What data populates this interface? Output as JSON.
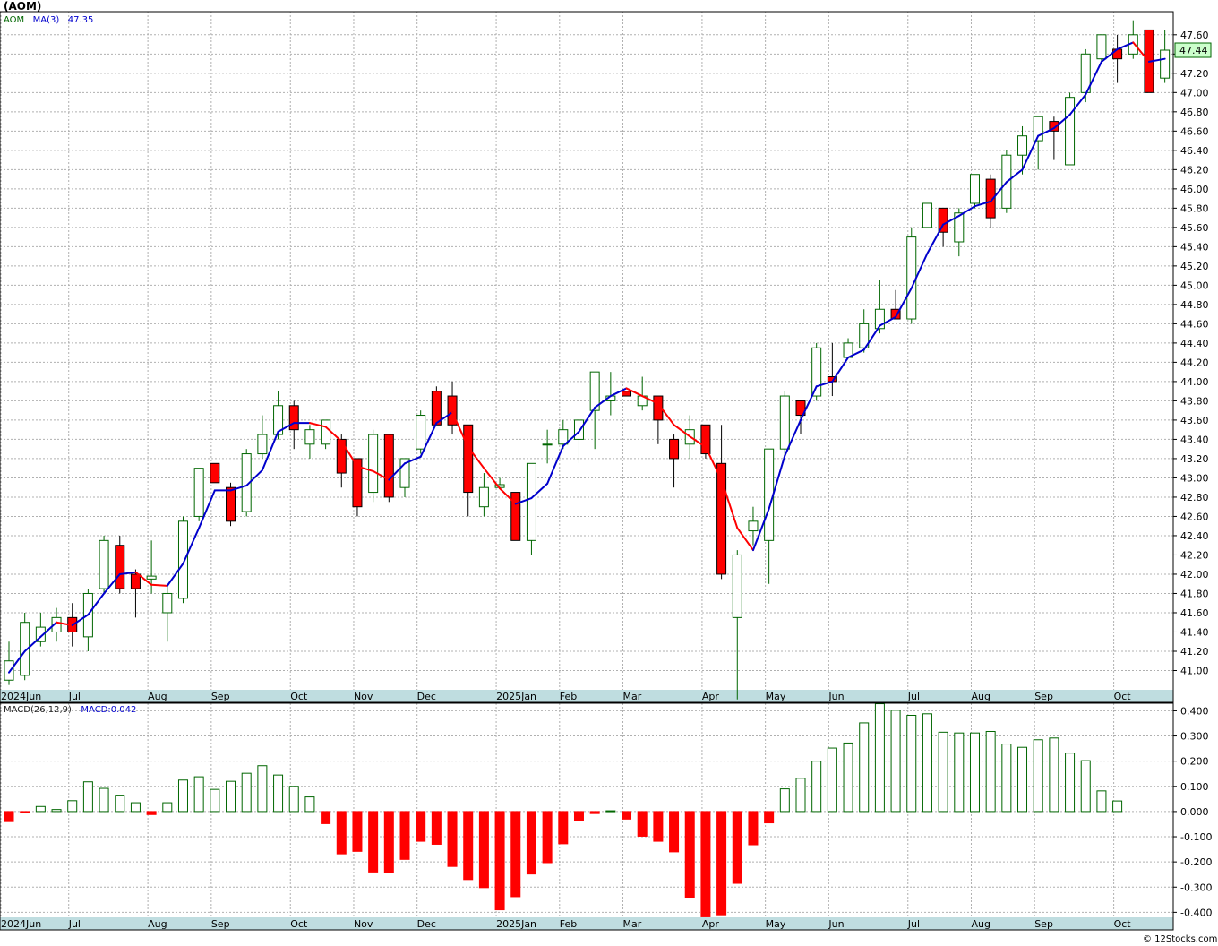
{
  "header": {
    "symbol": "(AOM)",
    "copyright": "© 12Stocks.com"
  },
  "legend": {
    "ticker": "AOM",
    "ma_label": "MA(3)",
    "ma_value": "47.35",
    "macd_label": "MACD(26,12,9)",
    "macd_value": "MACD:0.042"
  },
  "last_price": "47.44",
  "colors": {
    "up": "#006600",
    "down": "#ff0000",
    "ma_up": "#0000cc",
    "ma_down": "#ff0000",
    "grid": "#b0b0b0",
    "axis_band": "#bfdde0"
  },
  "chart_data": [
    {
      "type": "candlestick",
      "ylim": [
        40.8,
        47.84
      ],
      "yticks": [
        "41.00",
        "41.20",
        "41.40",
        "41.60",
        "41.80",
        "42.00",
        "42.20",
        "42.40",
        "42.60",
        "42.80",
        "43.00",
        "43.20",
        "43.40",
        "43.60",
        "43.80",
        "44.00",
        "44.20",
        "44.40",
        "44.60",
        "44.80",
        "45.00",
        "45.20",
        "45.40",
        "45.60",
        "45.80",
        "46.00",
        "46.20",
        "46.40",
        "46.60",
        "46.80",
        "47.00",
        "47.20",
        "47.40",
        "47.60"
      ],
      "month_labels": [
        {
          "label": "2024Jun",
          "week": -0.3
        },
        {
          "label": "Jul",
          "week": 4
        },
        {
          "label": "Aug",
          "week": 9
        },
        {
          "label": "Sep",
          "week": 13
        },
        {
          "label": "Oct",
          "week": 18
        },
        {
          "label": "Nov",
          "week": 22
        },
        {
          "label": "Dec",
          "week": 26
        },
        {
          "label": "2025Jan",
          "week": 31
        },
        {
          "label": "Feb",
          "week": 35
        },
        {
          "label": "Mar",
          "week": 39
        },
        {
          "label": "Apr",
          "week": 44
        },
        {
          "label": "May",
          "week": 48
        },
        {
          "label": "Jun",
          "week": 52
        },
        {
          "label": "Jul",
          "week": 57
        },
        {
          "label": "Aug",
          "week": 61
        },
        {
          "label": "Sep",
          "week": 65
        },
        {
          "label": "Oct",
          "week": 70
        }
      ],
      "candles": [
        {
          "o": 40.9,
          "h": 41.3,
          "l": 40.85,
          "c": 41.1
        },
        {
          "o": 40.95,
          "h": 41.6,
          "l": 40.9,
          "c": 41.5
        },
        {
          "o": 41.3,
          "h": 41.6,
          "l": 41.25,
          "c": 41.45
        },
        {
          "o": 41.4,
          "h": 41.65,
          "l": 41.3,
          "c": 41.55
        },
        {
          "o": 41.55,
          "h": 41.7,
          "l": 41.25,
          "c": 41.4
        },
        {
          "o": 41.35,
          "h": 41.85,
          "l": 41.2,
          "c": 41.8
        },
        {
          "o": 41.85,
          "h": 42.4,
          "l": 41.8,
          "c": 42.35
        },
        {
          "o": 42.3,
          "h": 42.4,
          "l": 41.8,
          "c": 41.85
        },
        {
          "o": 42.0,
          "h": 42.05,
          "l": 41.55,
          "c": 41.85
        },
        {
          "o": 41.95,
          "h": 42.35,
          "l": 41.8,
          "c": 41.98
        },
        {
          "o": 41.6,
          "h": 41.9,
          "l": 41.3,
          "c": 41.8
        },
        {
          "o": 41.75,
          "h": 42.6,
          "l": 41.7,
          "c": 42.55
        },
        {
          "o": 42.6,
          "h": 43.1,
          "l": 42.55,
          "c": 43.1
        },
        {
          "o": 43.15,
          "h": 43.15,
          "l": 42.95,
          "c": 42.95
        },
        {
          "o": 42.9,
          "h": 42.95,
          "l": 42.5,
          "c": 42.55
        },
        {
          "o": 42.65,
          "h": 43.3,
          "l": 42.6,
          "c": 43.25
        },
        {
          "o": 43.25,
          "h": 43.65,
          "l": 43.2,
          "c": 43.45
        },
        {
          "o": 43.45,
          "h": 43.9,
          "l": 43.4,
          "c": 43.75
        },
        {
          "o": 43.75,
          "h": 43.8,
          "l": 43.3,
          "c": 43.5
        },
        {
          "o": 43.35,
          "h": 43.55,
          "l": 43.2,
          "c": 43.5
        },
        {
          "o": 43.35,
          "h": 43.6,
          "l": 43.3,
          "c": 43.6
        },
        {
          "o": 43.4,
          "h": 43.45,
          "l": 42.9,
          "c": 43.05
        },
        {
          "o": 43.2,
          "h": 43.2,
          "l": 42.6,
          "c": 42.7
        },
        {
          "o": 42.85,
          "h": 43.5,
          "l": 42.75,
          "c": 43.45
        },
        {
          "o": 43.45,
          "h": 43.45,
          "l": 42.75,
          "c": 42.8
        },
        {
          "o": 42.9,
          "h": 43.2,
          "l": 42.8,
          "c": 43.2
        },
        {
          "o": 43.3,
          "h": 43.7,
          "l": 43.25,
          "c": 43.65
        },
        {
          "o": 43.9,
          "h": 43.95,
          "l": 43.55,
          "c": 43.55
        },
        {
          "o": 43.85,
          "h": 44.0,
          "l": 43.45,
          "c": 43.55
        },
        {
          "o": 43.55,
          "h": 43.55,
          "l": 42.6,
          "c": 42.85
        },
        {
          "o": 42.7,
          "h": 43.05,
          "l": 42.6,
          "c": 42.9
        },
        {
          "o": 42.9,
          "h": 43.0,
          "l": 42.9,
          "c": 42.93
        },
        {
          "o": 42.85,
          "h": 42.85,
          "l": 42.35,
          "c": 42.35
        },
        {
          "o": 42.35,
          "h": 43.15,
          "l": 42.2,
          "c": 43.15
        },
        {
          "o": 43.35,
          "h": 43.5,
          "l": 43.15,
          "c": 43.35
        },
        {
          "o": 43.35,
          "h": 43.6,
          "l": 43.3,
          "c": 43.5
        },
        {
          "o": 43.4,
          "h": 43.6,
          "l": 43.15,
          "c": 43.6
        },
        {
          "o": 43.7,
          "h": 44.1,
          "l": 43.3,
          "c": 44.1
        },
        {
          "o": 43.8,
          "h": 44.1,
          "l": 43.65,
          "c": 43.85
        },
        {
          "o": 43.9,
          "h": 43.9,
          "l": 43.85,
          "c": 43.85
        },
        {
          "o": 43.75,
          "h": 44.05,
          "l": 43.7,
          "c": 43.85
        },
        {
          "o": 43.85,
          "h": 43.85,
          "l": 43.35,
          "c": 43.6
        },
        {
          "o": 43.4,
          "h": 43.45,
          "l": 42.9,
          "c": 43.2
        },
        {
          "o": 43.35,
          "h": 43.65,
          "l": 43.2,
          "c": 43.5
        },
        {
          "o": 43.55,
          "h": 43.55,
          "l": 43.2,
          "c": 43.25
        },
        {
          "o": 43.15,
          "h": 43.55,
          "l": 41.95,
          "c": 42.0
        },
        {
          "o": 41.55,
          "h": 42.25,
          "l": 40.7,
          "c": 42.2
        },
        {
          "o": 42.45,
          "h": 42.7,
          "l": 42.3,
          "c": 42.55
        },
        {
          "o": 42.35,
          "h": 43.3,
          "l": 41.9,
          "c": 43.3
        },
        {
          "o": 43.3,
          "h": 43.9,
          "l": 43.2,
          "c": 43.85
        },
        {
          "o": 43.8,
          "h": 43.8,
          "l": 43.45,
          "c": 43.65
        },
        {
          "o": 43.85,
          "h": 44.4,
          "l": 43.8,
          "c": 44.35
        },
        {
          "o": 44.05,
          "h": 44.4,
          "l": 43.85,
          "c": 44.0
        },
        {
          "o": 44.25,
          "h": 44.45,
          "l": 44.25,
          "c": 44.4
        },
        {
          "o": 44.35,
          "h": 44.75,
          "l": 44.3,
          "c": 44.6
        },
        {
          "o": 44.55,
          "h": 45.05,
          "l": 44.5,
          "c": 44.75
        },
        {
          "o": 44.75,
          "h": 44.95,
          "l": 44.65,
          "c": 44.65
        },
        {
          "o": 44.65,
          "h": 45.6,
          "l": 44.6,
          "c": 45.5
        },
        {
          "o": 45.6,
          "h": 45.85,
          "l": 45.6,
          "c": 45.85
        },
        {
          "o": 45.8,
          "h": 45.8,
          "l": 45.4,
          "c": 45.55
        },
        {
          "o": 45.45,
          "h": 45.8,
          "l": 45.3,
          "c": 45.75
        },
        {
          "o": 45.85,
          "h": 46.15,
          "l": 45.8,
          "c": 46.15
        },
        {
          "o": 46.1,
          "h": 46.15,
          "l": 45.6,
          "c": 45.7
        },
        {
          "o": 45.8,
          "h": 46.4,
          "l": 45.75,
          "c": 46.35
        },
        {
          "o": 46.35,
          "h": 46.65,
          "l": 46.15,
          "c": 46.55
        },
        {
          "o": 46.5,
          "h": 46.75,
          "l": 46.2,
          "c": 46.75
        },
        {
          "o": 46.7,
          "h": 46.75,
          "l": 46.3,
          "c": 46.6
        },
        {
          "o": 46.25,
          "h": 47.0,
          "l": 46.25,
          "c": 46.95
        },
        {
          "o": 47.0,
          "h": 47.45,
          "l": 46.9,
          "c": 47.4
        },
        {
          "o": 47.35,
          "h": 47.6,
          "l": 47.3,
          "c": 47.6
        },
        {
          "o": 47.45,
          "h": 47.6,
          "l": 47.1,
          "c": 47.35
        },
        {
          "o": 47.4,
          "h": 47.75,
          "l": 47.35,
          "c": 47.6
        },
        {
          "o": 47.65,
          "h": 47.65,
          "l": 47.0,
          "c": 47.0
        },
        {
          "o": 47.15,
          "h": 47.65,
          "l": 47.1,
          "c": 47.44
        }
      ],
      "ma": [
        40.98,
        41.2,
        41.35,
        41.5,
        41.47,
        41.58,
        41.8,
        42.0,
        42.02,
        41.89,
        41.88,
        42.11,
        42.48,
        42.87,
        42.87,
        42.92,
        43.08,
        43.48,
        43.57,
        43.57,
        43.53,
        43.38,
        43.12,
        43.07,
        42.98,
        43.15,
        43.22,
        43.57,
        43.68,
        43.32,
        43.1,
        42.89,
        42.73,
        42.79,
        42.94,
        43.33,
        43.48,
        43.73,
        43.85,
        43.93,
        43.85,
        43.77,
        43.55,
        43.43,
        43.32,
        42.98,
        42.48,
        42.25,
        42.68,
        43.23,
        43.6,
        43.95,
        44.0,
        44.25,
        44.33,
        44.58,
        44.67,
        44.97,
        45.33,
        45.63,
        45.72,
        45.82,
        45.87,
        46.07,
        46.2,
        46.55,
        46.63,
        46.77,
        46.98,
        47.32,
        47.45,
        47.52,
        47.32,
        47.35
      ]
    },
    {
      "type": "bar",
      "title": "MACD(26,12,9)",
      "ylim": [
        -0.42,
        0.43
      ],
      "yticks": [
        "0.400",
        "0.300",
        "0.200",
        "0.100",
        "0.000",
        "-0.100",
        "-0.200",
        "-0.300",
        "-0.400"
      ],
      "values": [
        -0.04,
        -0.002,
        0.02,
        0.008,
        0.043,
        0.118,
        0.092,
        0.065,
        0.035,
        -0.012,
        0.035,
        0.125,
        0.138,
        0.088,
        0.12,
        0.152,
        0.182,
        0.145,
        0.1,
        0.058,
        -0.048,
        -0.168,
        -0.158,
        -0.24,
        -0.242,
        -0.19,
        -0.118,
        -0.13,
        -0.218,
        -0.27,
        -0.302,
        -0.39,
        -0.338,
        -0.248,
        -0.203,
        -0.128,
        -0.035,
        -0.008,
        0.003,
        -0.03,
        -0.098,
        -0.118,
        -0.16,
        -0.34,
        -0.418,
        -0.41,
        -0.285,
        -0.132,
        -0.045,
        0.09,
        0.132,
        0.2,
        0.252,
        0.272,
        0.352,
        0.428,
        0.402,
        0.382,
        0.388,
        0.315,
        0.312,
        0.312,
        0.318,
        0.268,
        0.255,
        0.285,
        0.292,
        0.232,
        0.202,
        0.082,
        0.042
      ]
    }
  ]
}
